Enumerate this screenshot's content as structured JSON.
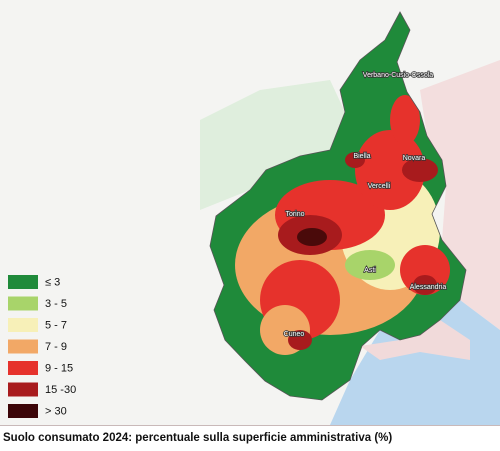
{
  "caption": "Suolo consumato 2024: percentuale sulla superficie amministrativa (%)",
  "legend": {
    "items": [
      {
        "label": "≤ 3",
        "color": "#1f8a3a"
      },
      {
        "label": "3 - 5",
        "color": "#a8d46a"
      },
      {
        "label": "5 - 7",
        "color": "#f7f0b8"
      },
      {
        "label": "7 - 9",
        "color": "#f2a866"
      },
      {
        "label": "9 - 15",
        "color": "#e6322c"
      },
      {
        "label": "15 -30",
        "color": "#a81b1d"
      },
      {
        "label": "> 30",
        "color": "#3c0508"
      }
    ]
  },
  "cities": [
    "Verbano-Cusio-Ossola",
    "Biella",
    "Novara",
    "Vercelli",
    "Torino",
    "Asti",
    "Alessandria",
    "Cuneo"
  ]
}
